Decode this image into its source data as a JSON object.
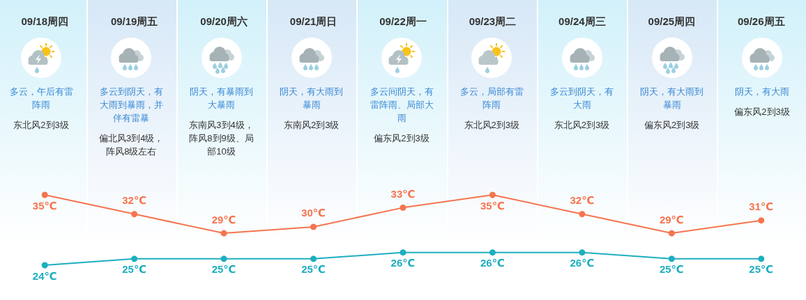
{
  "chart_data": {
    "type": "line",
    "categories": [
      "09/18周四",
      "09/19周五",
      "09/20周六",
      "09/21周日",
      "09/22周一",
      "09/23周二",
      "09/24周三",
      "09/25周四",
      "09/26周五"
    ],
    "series": [
      {
        "color": "#f6744f",
        "values": [
          35,
          32,
          29,
          30,
          33,
          35,
          32,
          29,
          31
        ],
        "value_labels": [
          "35℃",
          "32℃",
          "29℃",
          "30℃",
          "33℃",
          "35℃",
          "32℃",
          "29℃",
          "31℃"
        ]
      },
      {
        "color": "#1daec0",
        "values": [
          24,
          25,
          25,
          25,
          26,
          26,
          26,
          25,
          25
        ],
        "value_labels": [
          "24℃",
          "25℃",
          "25℃",
          "25℃",
          "26℃",
          "26℃",
          "26℃",
          "25℃",
          "25℃"
        ]
      }
    ],
    "marker": "circle",
    "line_style": "solid",
    "grid": false,
    "tick_labels": "x",
    "annotations": [
      "多云，午后有雷阵雨",
      "东北风2到3级",
      "多云到阴天，有大雨到暴雨，并伴有雷暴",
      "偏北风3到4级，阵风8级左右",
      "阴天，有暴雨到大暴雨",
      "东南风3到4级，阵风8到9级、局部10级",
      "阴天，有大雨到暴雨",
      "东南风2到3级",
      "多云间阴天，有雷阵雨、局部大雨",
      "偏东风2到3级",
      "多云，局部有雷阵雨",
      "东北风2到3级",
      "多云到阴天，有大雨",
      "东北风2到3级",
      "阴天，有大雨到暴雨",
      "偏东风2到3级",
      "阴天，有大雨",
      "偏东风2到3级"
    ]
  }
}
